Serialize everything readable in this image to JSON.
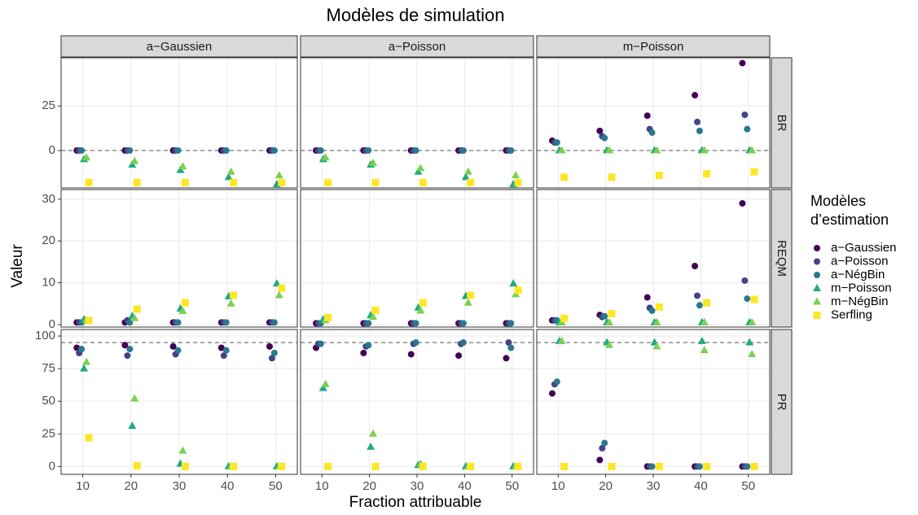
{
  "chart_data": {
    "type": "scatter",
    "title": "Modèles de simulation",
    "x_label": "Fraction attribuable",
    "y_label": "Valeur",
    "legend_title": [
      "Modèles",
      "d’estimation"
    ],
    "x": [
      10,
      20,
      30,
      40,
      50
    ],
    "xlim": [
      5.5,
      54.5
    ],
    "xticks": [
      10,
      20,
      30,
      40,
      50
    ],
    "columns": [
      "a−Gaussien",
      "a−Poisson",
      "m−Poisson"
    ],
    "rows": [
      {
        "name": "BR",
        "ylim": [
          -21,
          52
        ],
        "yticks": [
          0,
          25
        ],
        "hline": 0
      },
      {
        "name": "REQM",
        "ylim": [
          -0.6,
          32.3
        ],
        "yticks": [
          0,
          10,
          20,
          30
        ]
      },
      {
        "name": "PR",
        "ylim": [
          -6,
          105
        ],
        "yticks": [
          0,
          25,
          50,
          75,
          100
        ],
        "hline": 95
      }
    ],
    "grid": true,
    "series": [
      {
        "name": "a−Gaussien",
        "color": "#440154",
        "shape": "circle",
        "values": [
          [
            [
              0,
              0,
              0,
              0,
              0
            ],
            [
              0,
              0,
              0,
              0,
              0
            ],
            [
              5.5,
              11,
              19.5,
              31,
              49
            ]
          ],
          [
            [
              0.5,
              0.5,
              0.5,
              0.5,
              0.5
            ],
            [
              0.3,
              0.3,
              0.3,
              0.3,
              0.3
            ],
            [
              1,
              2.3,
              6.5,
              14,
              29
            ]
          ],
          [
            [
              91,
              93,
              92,
              91,
              92
            ],
            [
              91,
              87,
              86,
              85,
              83
            ],
            [
              56,
              5,
              0,
              0,
              0
            ]
          ]
        ]
      },
      {
        "name": "a−Poisson",
        "color": "#414487",
        "shape": "circle",
        "values": [
          [
            [
              0,
              0,
              0,
              0,
              0
            ],
            [
              0,
              0,
              0,
              0,
              0
            ],
            [
              4.5,
              8,
              12,
              16,
              20
            ]
          ],
          [
            [
              0.5,
              1,
              0.5,
              0.5,
              0.5
            ],
            [
              0.3,
              0.3,
              0.3,
              0.3,
              0.3
            ],
            [
              1,
              1.8,
              4,
              6.9,
              10.5
            ]
          ],
          [
            [
              87,
              85,
              86,
              85,
              83
            ],
            [
              94,
              92,
              94,
              94,
              95
            ],
            [
              63,
              14,
              0,
              0,
              0
            ]
          ]
        ]
      },
      {
        "name": "a−NégBin",
        "color": "#2a788e",
        "shape": "circle",
        "values": [
          [
            [
              0,
              0,
              0,
              0,
              0
            ],
            [
              0,
              0,
              0,
              0,
              0
            ],
            [
              4.5,
              7,
              10,
              11,
              12
            ]
          ],
          [
            [
              0.5,
              0.5,
              0.5,
              0.5,
              0.5
            ],
            [
              0.3,
              0.3,
              0.3,
              0.3,
              0.3
            ],
            [
              1,
              2,
              3.3,
              4.6,
              6.2
            ]
          ],
          [
            [
              90,
              90,
              89,
              89,
              87
            ],
            [
              94,
              93,
              95,
              95,
              91
            ],
            [
              65,
              18,
              0,
              0,
              0
            ]
          ]
        ]
      },
      {
        "name": "m−Poisson",
        "color": "#22a884",
        "shape": "triangle",
        "values": [
          [
            [
              -5,
              -8,
              -11,
              -15,
              -19
            ],
            [
              -5,
              -8,
              -12,
              -15,
              -19
            ],
            [
              0,
              0,
              0,
              0,
              0
            ]
          ],
          [
            [
              1.2,
              2,
              3.8,
              6.7,
              9.8
            ],
            [
              1.2,
              2.2,
              4,
              6.8,
              9.8
            ],
            [
              0.5,
              0.5,
              0.5,
              0.5,
              0.5
            ]
          ],
          [
            [
              75,
              31,
              2,
              0,
              0
            ],
            [
              60,
              15,
              1,
              0,
              0
            ],
            [
              96,
              95,
              95,
              96,
              95
            ]
          ]
        ]
      },
      {
        "name": "m−NégBin",
        "color": "#7ad151",
        "shape": "triangle",
        "values": [
          [
            [
              -4,
              -6,
              -9,
              -12,
              -14
            ],
            [
              -4,
              -7,
              -10,
              -12,
              -14
            ],
            [
              0,
              0,
              0,
              0,
              0
            ]
          ],
          [
            [
              1,
              1.5,
              3.2,
              5,
              7
            ],
            [
              1,
              1.8,
              3.3,
              5.2,
              7.2
            ],
            [
              0.5,
              0.5,
              0.5,
              0.5,
              0.5
            ]
          ],
          [
            [
              80,
              52,
              12,
              0,
              0
            ],
            [
              63,
              25,
              2,
              0,
              0
            ],
            [
              96,
              93,
              92,
              89,
              86
            ]
          ]
        ]
      },
      {
        "name": "Serfling",
        "color": "#fde725",
        "shape": "square",
        "values": [
          [
            [
              -18,
              -18,
              -18,
              -18,
              -18
            ],
            [
              -18,
              -18,
              -18,
              -18,
              -18
            ],
            [
              -15,
              -15,
              -14,
              -13,
              -12
            ]
          ],
          [
            [
              1,
              3.7,
              5.2,
              7,
              8.7
            ],
            [
              1.7,
              3.4,
              5.2,
              7,
              8.2
            ],
            [
              1.5,
              2.6,
              4.2,
              5.2,
              6
            ]
          ],
          [
            [
              22,
              0.5,
              0,
              0,
              0
            ],
            [
              0,
              0,
              0,
              0,
              0
            ],
            [
              0,
              0,
              0,
              0,
              0
            ]
          ]
        ]
      }
    ]
  }
}
